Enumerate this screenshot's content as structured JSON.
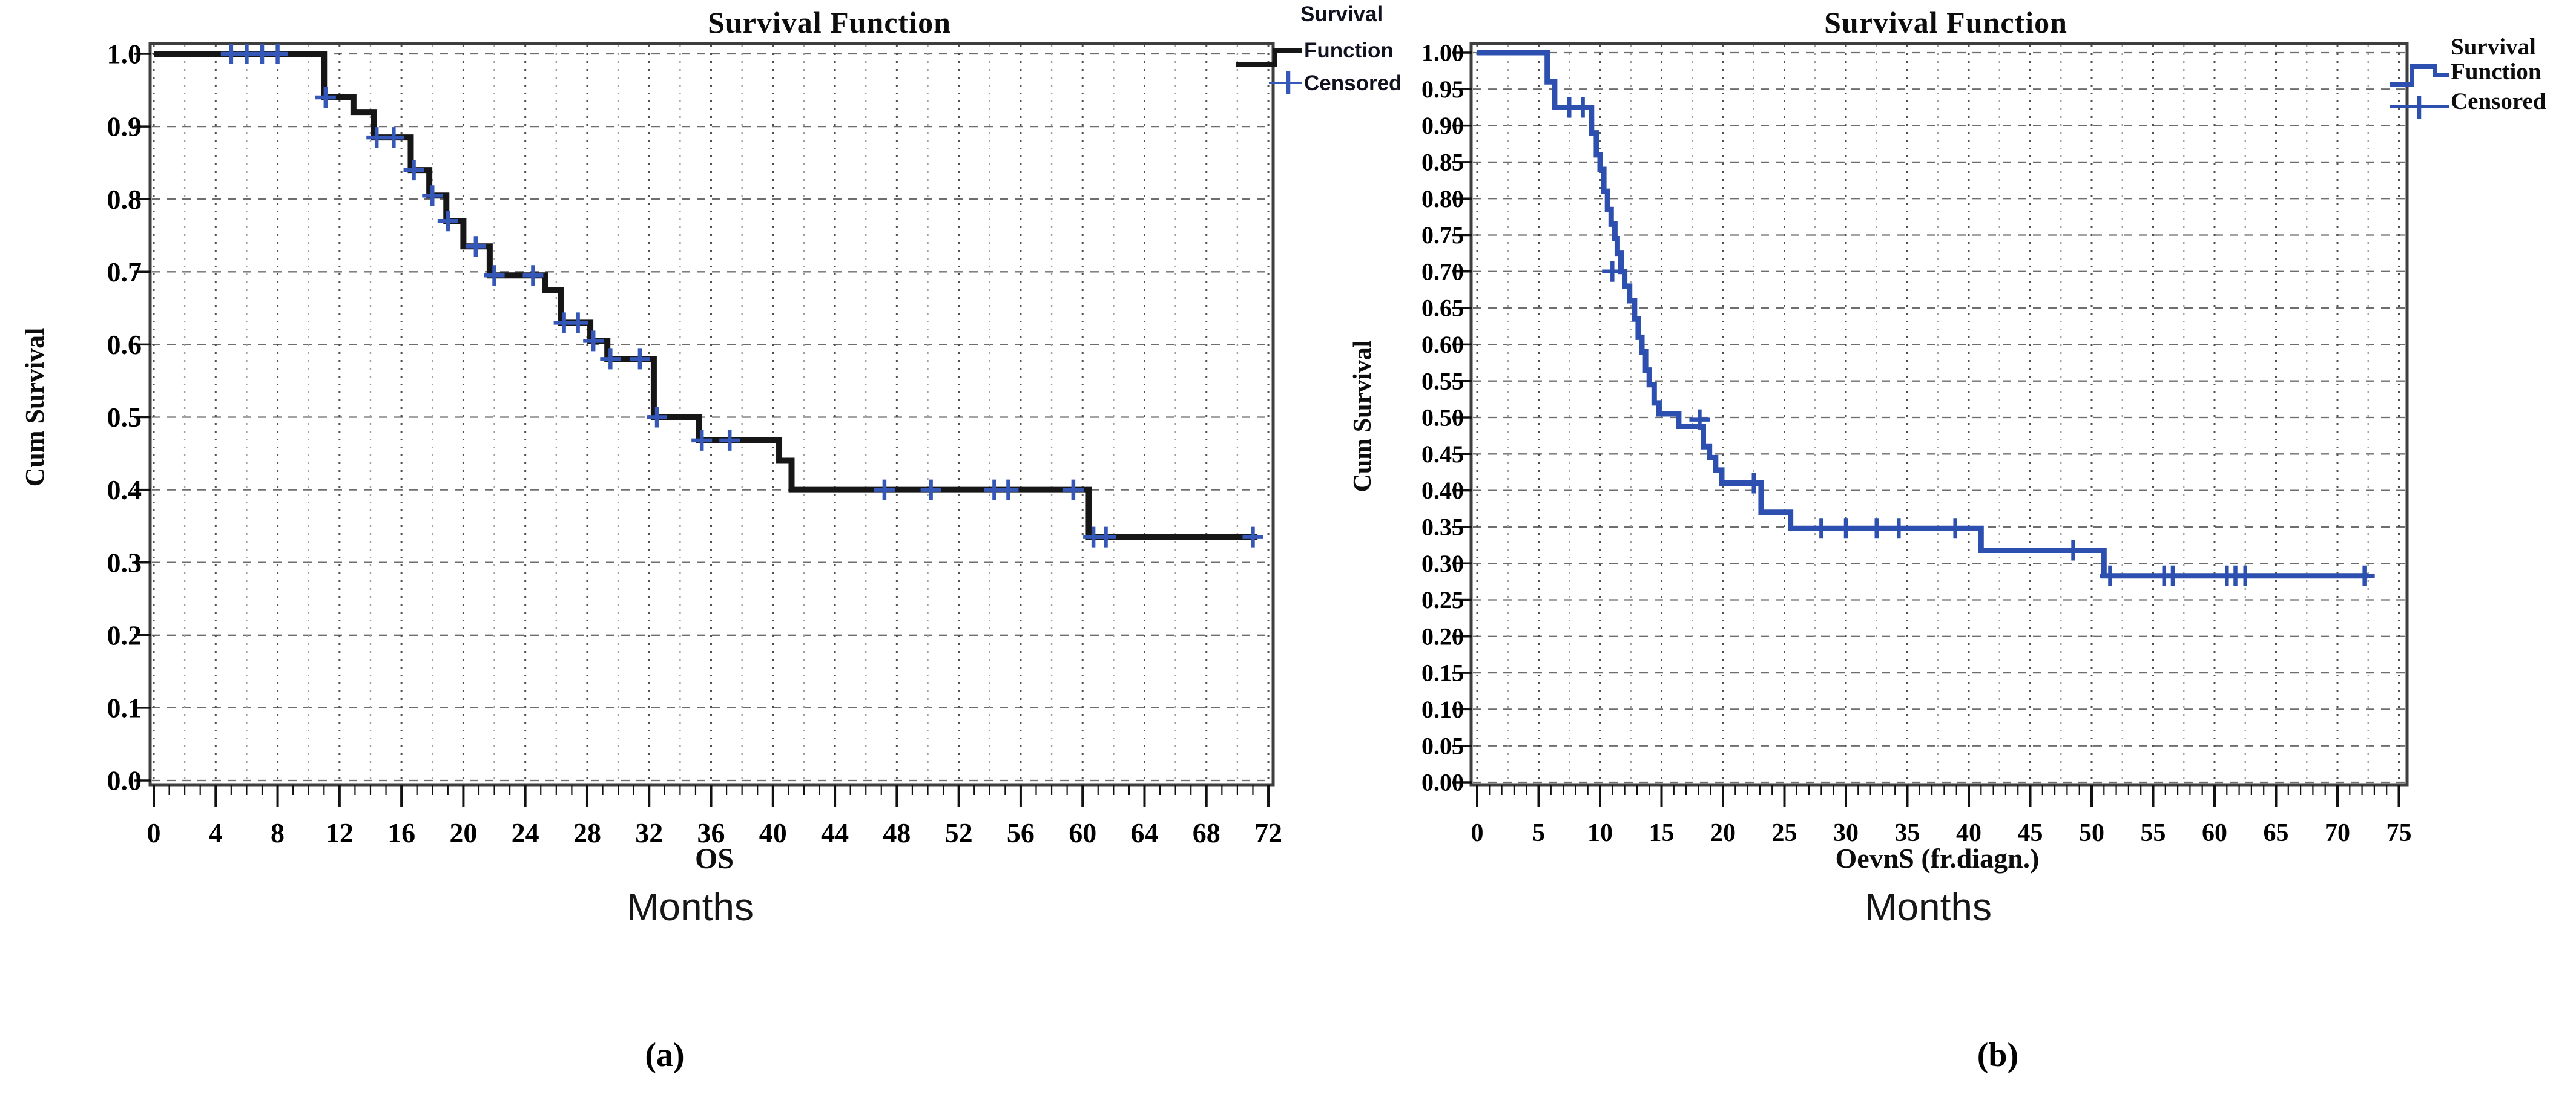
{
  "figure": {
    "background": "#ffffff",
    "captions": {
      "a": "(a)",
      "b": "(b)"
    }
  },
  "charts": [
    {
      "title": "Survival Function",
      "y_axis_title": "Cum Survival",
      "x_axis_title": "OS",
      "x_axis_unit": "Months",
      "legend": {
        "header": "Survival",
        "items": [
          {
            "label": "Function",
            "symbol": "step-line-icon",
            "color": "#161616"
          },
          {
            "label": "Censored",
            "symbol": "plus-icon",
            "color": "#3558b8"
          }
        ]
      },
      "chart_data": {
        "type": "line",
        "subtype": "kaplan-meier-step",
        "title": "Survival Function",
        "xlabel": "OS (Months)",
        "ylabel": "Cum Survival",
        "xlim": [
          0,
          72
        ],
        "ylim": [
          0.0,
          1.0
        ],
        "grid": {
          "horizontal": "dashed",
          "vertical": "dotted",
          "x_minor_step": 2,
          "x_major_step": 4,
          "y_step": 0.1
        },
        "legend_position": "outside-top-right",
        "xticks": [
          0,
          4,
          8,
          12,
          16,
          20,
          24,
          28,
          32,
          36,
          40,
          44,
          48,
          52,
          56,
          60,
          64,
          68,
          72
        ],
        "yticks": [
          1.0,
          0.9,
          0.8,
          0.7,
          0.6,
          0.5,
          0.4,
          0.3,
          0.2,
          0.1,
          0.0
        ],
        "ytick_labels": [
          "1.0",
          "0.9",
          "0.8",
          "0.7",
          "0.6",
          "0.5",
          "0.4",
          "0.3",
          "0.2",
          "0.1",
          "0.0"
        ],
        "series": [
          {
            "name": "Survival Function",
            "color": "#161616",
            "censor_color": "#3558b8",
            "steps": [
              [
                0,
                1.0
              ],
              [
                11,
                0.94
              ],
              [
                12.9,
                0.92
              ],
              [
                14.2,
                0.885
              ],
              [
                16.6,
                0.84
              ],
              [
                17.8,
                0.805
              ],
              [
                18.9,
                0.77
              ],
              [
                20,
                0.735
              ],
              [
                21.7,
                0.695
              ],
              [
                25.3,
                0.675
              ],
              [
                26.3,
                0.63
              ],
              [
                28.2,
                0.605
              ],
              [
                29.3,
                0.58
              ],
              [
                32.3,
                0.5
              ],
              [
                35.2,
                0.468
              ],
              [
                40.4,
                0.44
              ],
              [
                41.2,
                0.4
              ],
              [
                60.4,
                0.335
              ]
            ],
            "end_time": 71.3,
            "censored": [
              [
                5,
                1.0
              ],
              [
                6,
                1.0
              ],
              [
                7,
                1.0
              ],
              [
                8,
                1.0
              ],
              [
                11.1,
                0.94
              ],
              [
                14.4,
                0.885
              ],
              [
                15.5,
                0.885
              ],
              [
                16.8,
                0.84
              ],
              [
                18,
                0.805
              ],
              [
                19,
                0.77
              ],
              [
                20.8,
                0.735
              ],
              [
                22,
                0.695
              ],
              [
                24.5,
                0.695
              ],
              [
                26.5,
                0.63
              ],
              [
                27.4,
                0.63
              ],
              [
                28.4,
                0.605
              ],
              [
                29.5,
                0.58
              ],
              [
                31.4,
                0.58
              ],
              [
                32.5,
                0.5
              ],
              [
                35.4,
                0.468
              ],
              [
                37.2,
                0.468
              ],
              [
                47.2,
                0.4
              ],
              [
                50.2,
                0.4
              ],
              [
                54.3,
                0.4
              ],
              [
                55.2,
                0.4
              ],
              [
                59.4,
                0.4
              ],
              [
                60.7,
                0.335
              ],
              [
                61.5,
                0.335
              ],
              [
                71,
                0.335
              ]
            ]
          }
        ]
      }
    },
    {
      "title": "Survival Function",
      "y_axis_title": "Cum Survival",
      "x_axis_title": "OevnS (fr.diagn.)",
      "x_axis_unit": "Months",
      "legend": {
        "header": null,
        "items": [
          {
            "label": "Survival Function",
            "symbol": "step-line-icon",
            "color": "#2d50b0"
          },
          {
            "label": "Censored",
            "symbol": "plus-icon",
            "color": "#2d50b0"
          }
        ]
      },
      "chart_data": {
        "type": "line",
        "subtype": "kaplan-meier-step",
        "title": "Survival Function",
        "xlabel": "OevnS (fr.diagn.) (Months)",
        "ylabel": "Cum Survival",
        "xlim": [
          0,
          75
        ],
        "ylim": [
          0.0,
          1.0
        ],
        "grid": {
          "horizontal": "dashed",
          "vertical": "dotted",
          "x_minor_step": 2.5,
          "x_major_step": 5,
          "y_step": 0.05
        },
        "legend_position": "outside-top-right",
        "xticks": [
          0,
          5,
          10,
          15,
          20,
          25,
          30,
          35,
          40,
          45,
          50,
          55,
          60,
          65,
          70,
          75
        ],
        "yticks": [
          1.0,
          0.95,
          0.9,
          0.85,
          0.8,
          0.75,
          0.7,
          0.65,
          0.6,
          0.55,
          0.5,
          0.45,
          0.4,
          0.35,
          0.3,
          0.25,
          0.2,
          0.15,
          0.1,
          0.05,
          0.0
        ],
        "ytick_labels": [
          "1.00",
          "0.95",
          "0.90",
          "0.85",
          "0.80",
          "0.75",
          "0.70",
          "0.65",
          "0.60",
          "0.55",
          "0.50",
          "0.45",
          "0.40",
          "0.35",
          "0.30",
          "0.25",
          "0.20",
          "0.15",
          "0.10",
          "0.05",
          "0.00"
        ],
        "series": [
          {
            "name": "Survival Function",
            "color": "#2d50b0",
            "censor_color": "#2d50b0",
            "steps": [
              [
                0,
                1.0
              ],
              [
                5.7,
                0.96
              ],
              [
                6.3,
                0.925
              ],
              [
                9.3,
                0.89
              ],
              [
                9.7,
                0.86
              ],
              [
                10.0,
                0.84
              ],
              [
                10.3,
                0.81
              ],
              [
                10.6,
                0.785
              ],
              [
                10.9,
                0.765
              ],
              [
                11.2,
                0.745
              ],
              [
                11.4,
                0.725
              ],
              [
                11.7,
                0.7
              ],
              [
                12.0,
                0.68
              ],
              [
                12.4,
                0.66
              ],
              [
                12.8,
                0.635
              ],
              [
                13.1,
                0.61
              ],
              [
                13.4,
                0.59
              ],
              [
                13.7,
                0.565
              ],
              [
                14.0,
                0.545
              ],
              [
                14.4,
                0.52
              ],
              [
                14.8,
                0.505
              ],
              [
                16.4,
                0.488
              ],
              [
                18.4,
                0.46
              ],
              [
                18.9,
                0.445
              ],
              [
                19.4,
                0.428
              ],
              [
                19.9,
                0.41
              ],
              [
                23.1,
                0.37
              ],
              [
                25.5,
                0.348
              ],
              [
                41,
                0.318
              ],
              [
                51,
                0.283
              ]
            ],
            "end_time": 72.5,
            "censored": [
              [
                7.5,
                0.925
              ],
              [
                8.6,
                0.925
              ],
              [
                11.0,
                0.7
              ],
              [
                18.1,
                0.497
              ],
              [
                22.5,
                0.41
              ],
              [
                28,
                0.348
              ],
              [
                30,
                0.348
              ],
              [
                32.5,
                0.348
              ],
              [
                34.3,
                0.348
              ],
              [
                38.9,
                0.348
              ],
              [
                48.5,
                0.318
              ],
              [
                51.5,
                0.283
              ],
              [
                55.9,
                0.283
              ],
              [
                56.6,
                0.283
              ],
              [
                61.0,
                0.283
              ],
              [
                61.7,
                0.283
              ],
              [
                62.5,
                0.283
              ],
              [
                72.2,
                0.283
              ]
            ]
          }
        ]
      }
    }
  ]
}
